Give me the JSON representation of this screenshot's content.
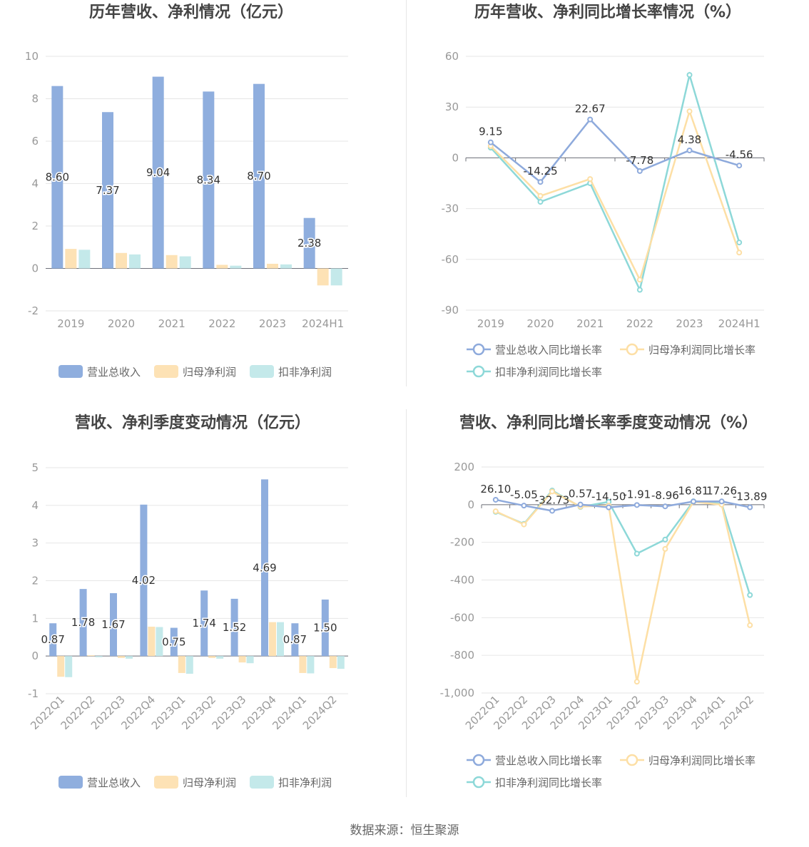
{
  "source": "数据来源：恒生聚源",
  "colors": {
    "revenue": "#8faede",
    "net_profit": "#fde2b5",
    "deducted_profit": "#c4e9ea",
    "rev_line": "#8eaadc",
    "np_line": "#fddfa5",
    "dp_line": "#8dd8d8"
  },
  "chart_data": [
    {
      "type": "bar",
      "title": "历年营收、净利情况（亿元）",
      "categories": [
        "2019",
        "2020",
        "2021",
        "2022",
        "2023",
        "2024H1"
      ],
      "ylim": [
        -2,
        10
      ],
      "yticks": [
        "10",
        "8",
        "6",
        "4",
        "2",
        "0",
        "-2"
      ],
      "series": [
        {
          "name": "营业总收入",
          "values": [
            8.6,
            7.37,
            9.04,
            8.34,
            8.7,
            2.38
          ],
          "labels": [
            "8.60",
            "7.37",
            "9.04",
            "8.34",
            "8.70",
            "2.38"
          ]
        },
        {
          "name": "归母净利润",
          "values": [
            0.92,
            0.73,
            0.63,
            0.17,
            0.22,
            -0.8
          ]
        },
        {
          "name": "扣非净利润",
          "values": [
            0.88,
            0.66,
            0.57,
            0.13,
            0.19,
            -0.8
          ]
        }
      ],
      "legend": "bottom"
    },
    {
      "type": "line",
      "title": "历年营收、净利同比增长率情况（%）",
      "categories": [
        "2019",
        "2020",
        "2021",
        "2022",
        "2023",
        "2024H1"
      ],
      "ylim": [
        -90,
        60
      ],
      "yticks": [
        "60",
        "30",
        "0",
        "-30",
        "-60",
        "-90"
      ],
      "series": [
        {
          "name": "营业总收入同比增长率",
          "values": [
            9.15,
            -14.25,
            22.67,
            -7.78,
            4.38,
            -4.56
          ],
          "labels": [
            "9.15",
            "-14.25",
            "22.67",
            "-7.78",
            "4.38",
            "-4.56"
          ]
        },
        {
          "name": "归母净利润同比增长率",
          "values": [
            7,
            -22.5,
            -12.5,
            -72,
            27.5,
            -56
          ]
        },
        {
          "name": "扣非净利润同比增长率",
          "values": [
            6,
            -26,
            -15,
            -78,
            49,
            -50
          ]
        }
      ],
      "legend": "bottom"
    },
    {
      "type": "bar",
      "title": "营收、净利季度变动情况（亿元）",
      "categories": [
        "2022Q1",
        "2022Q2",
        "2022Q3",
        "2022Q4",
        "2023Q1",
        "2023Q2",
        "2023Q3",
        "2023Q4",
        "2024Q1",
        "2024Q2"
      ],
      "ylim": [
        -1,
        5
      ],
      "yticks": [
        "5",
        "4",
        "3",
        "2",
        "1",
        "0",
        "-1"
      ],
      "series": [
        {
          "name": "营业总收入",
          "values": [
            0.87,
            1.78,
            1.67,
            4.02,
            0.75,
            1.74,
            1.52,
            4.69,
            0.87,
            1.5
          ],
          "labels": [
            "0.87",
            "1.78",
            "1.67",
            "4.02",
            "0.75",
            "1.74",
            "1.52",
            "4.69",
            "0.87",
            "1.50"
          ]
        },
        {
          "name": "归母净利润",
          "values": [
            -0.55,
            0.02,
            -0.05,
            0.78,
            -0.45,
            -0.05,
            -0.17,
            0.9,
            -0.45,
            -0.32
          ]
        },
        {
          "name": "扣非净利润",
          "values": [
            -0.56,
            -0.03,
            -0.07,
            0.77,
            -0.47,
            -0.07,
            -0.19,
            0.9,
            -0.46,
            -0.34
          ]
        }
      ],
      "legend": "bottom"
    },
    {
      "type": "line",
      "title": "营收、净利同比增长率季度变动情况（%）",
      "categories": [
        "2022Q1",
        "2022Q2",
        "2022Q3",
        "2022Q4",
        "2023Q1",
        "2023Q2",
        "2023Q3",
        "2023Q4",
        "2024Q1",
        "2024Q2"
      ],
      "ylim": [
        -1000,
        200
      ],
      "yticks": [
        "200",
        "0",
        "-200",
        "-400",
        "-600",
        "-800",
        "-1,000"
      ],
      "series": [
        {
          "name": "营业总收入同比增长率",
          "values": [
            26.1,
            -5.05,
            -32.73,
            0.57,
            -14.5,
            -1.91,
            -8.96,
            16.81,
            17.26,
            -13.89
          ],
          "labels": [
            "26.10",
            "-5.05",
            "-32.73",
            "0.57",
            "-14.50",
            "-1.91",
            "-8.96",
            "16.81",
            "17.26",
            "-13.89"
          ]
        },
        {
          "name": "归母净利润同比增长率",
          "values": [
            -35,
            -105,
            70,
            -10,
            -5,
            -940,
            -235,
            15,
            0,
            -640
          ]
        },
        {
          "name": "扣非净利润同比增长率",
          "values": [
            -38,
            -102,
            75,
            -12,
            15,
            -260,
            -185,
            18,
            5,
            -480
          ]
        }
      ],
      "legend": "bottom"
    }
  ]
}
